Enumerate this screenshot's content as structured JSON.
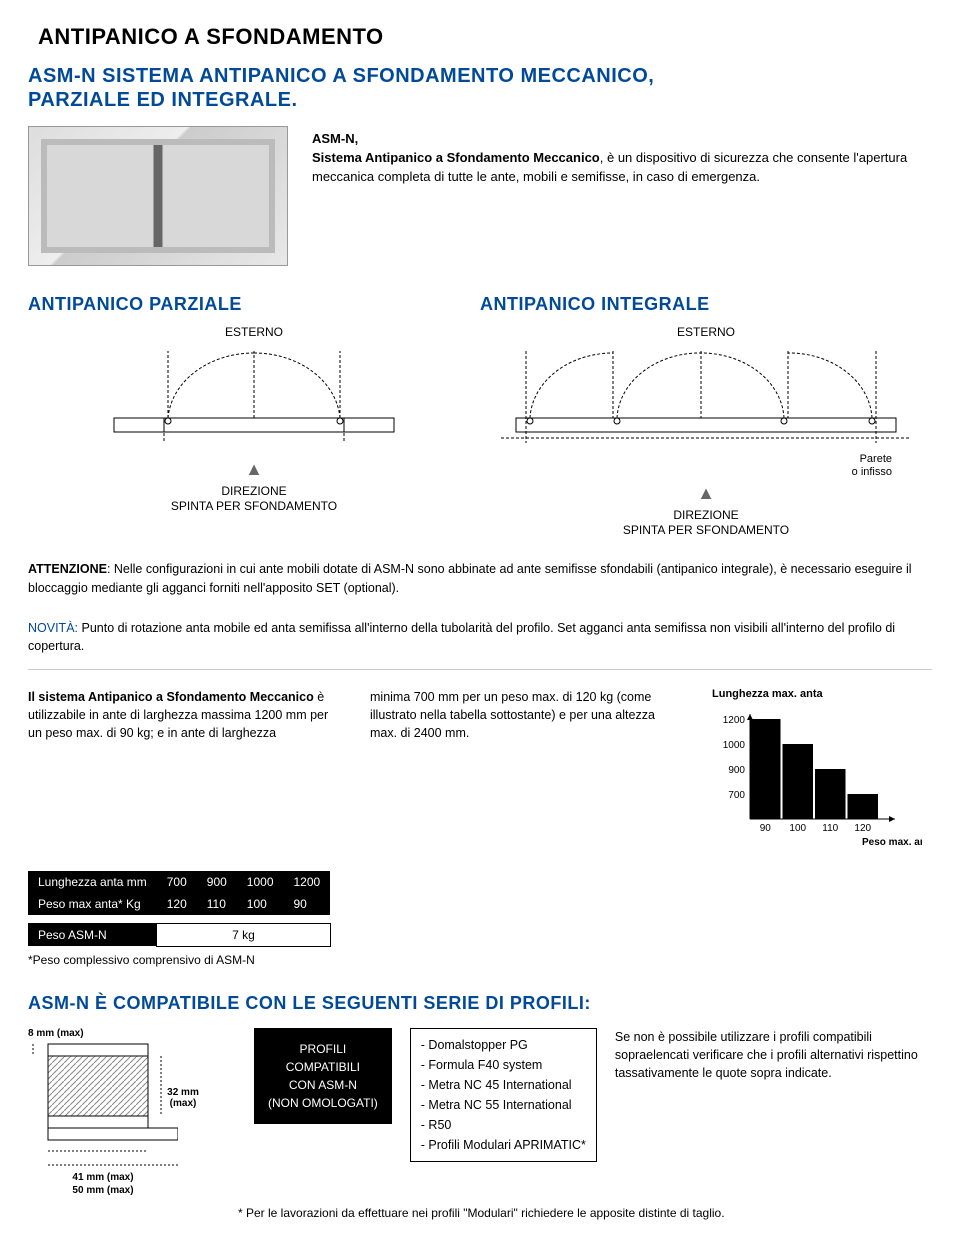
{
  "header": {
    "title": "ANTIPANICO A SFONDAMENTO"
  },
  "subtitle": {
    "line1": "ASM-N SISTEMA ANTIPANICO A SFONDAMENTO MECCANICO,",
    "line2": "PARZIALE ED INTEGRALE."
  },
  "intro": {
    "bold_lead": "ASM-N,\nSistema Antipanico a Sfondamento Meccanico",
    "text": ", è un dispositivo di sicurezza che consente l'apertura meccanica completa di tutte le ante, mobili e semifisse, in caso di emergenza."
  },
  "sections": {
    "parziale": {
      "title": "ANTIPANICO PARZIALE",
      "esterno": "ESTERNO",
      "direzione1": "DIREZIONE",
      "direzione2": "SPINTA PER SFONDAMENTO"
    },
    "integrale": {
      "title": "ANTIPANICO INTEGRALE",
      "esterno": "ESTERNO",
      "parete": "Parete\no infisso",
      "direzione1": "DIREZIONE",
      "direzione2": "SPINTA PER SFONDAMENTO"
    }
  },
  "notes": {
    "attenzione_label": "ATTENZIONE",
    "attenzione_text": ": Nelle configurazioni in cui ante mobili dotate di ASM-N sono abbinate ad ante semifisse sfondabili (antipanico integrale), è necessario eseguire il bloccaggio mediante gli agganci forniti nell'apposito SET (optional).",
    "novita_label": "NOVITÀ:",
    "novita_text": " Punto di rotazione anta mobile ed anta semifissa all'interno della tubolarità del profilo. Set agganci anta semifissa non visibili all'interno del profilo di copertura."
  },
  "mid": {
    "left_bold": "Il sistema Antipanico a Sfondamento Meccanico",
    "left_rest": " è utilizzabile in ante di larghezza massima 1200 mm per un peso max. di 90 kg; e in ante di larghezza",
    "right": "minima 700 mm per un peso max. di 120 kg (come illustrato nella tabella sottostante) e per una altezza max. di 2400 mm."
  },
  "chart": {
    "title": "Lunghezza max. anta",
    "y_vals": [
      "1200",
      "1000",
      "900",
      "700"
    ],
    "x_vals": [
      "90",
      "100",
      "110",
      "120"
    ],
    "x_label": "Peso max. anta",
    "bar_color": "#000000",
    "grid_color": "#000000",
    "bars": [
      4,
      3,
      2,
      1
    ]
  },
  "table": {
    "r1c0": "Lunghezza anta mm",
    "r1": [
      "700",
      "900",
      "1000",
      "1200"
    ],
    "r2c0": "Peso max anta* Kg",
    "r2": [
      "120",
      "110",
      "100",
      "90"
    ],
    "r3c0": "Peso ASM-N",
    "r3v": "7 kg",
    "foot": "*Peso complessivo comprensivo di ASM-N"
  },
  "compat": {
    "title": "ASM-N È COMPATIBILE CON LE SEGUENTI SERIE DI PROFILI:",
    "dims": {
      "d8": "8 mm (max)",
      "d32": "32 mm (max)",
      "d41": "41 mm (max)",
      "d50": "50 mm (max)"
    },
    "box": {
      "l1": "PROFILI",
      "l2": "COMPATIBILI",
      "l3": "CON ASM-N",
      "l4": "(NON OMOLOGATI)"
    },
    "list": [
      "- Domalstopper PG",
      "- Formula F40 system",
      "- Metra NC 45 International",
      "- Metra NC 55 International",
      "- R50",
      "- Profili Modulari APRIMATIC*"
    ],
    "right": "Se non è possibile utilizzare i profili compatibili sopraelencati verificare che i profili alternativi rispettino tassativamente le quote sopra indicate.",
    "foot": "* Per le lavorazioni da effettuare nei profili \"Modulari\" richiedere le apposite distinte di taglio."
  },
  "colors": {
    "blue": "#004a99",
    "black": "#000000"
  }
}
